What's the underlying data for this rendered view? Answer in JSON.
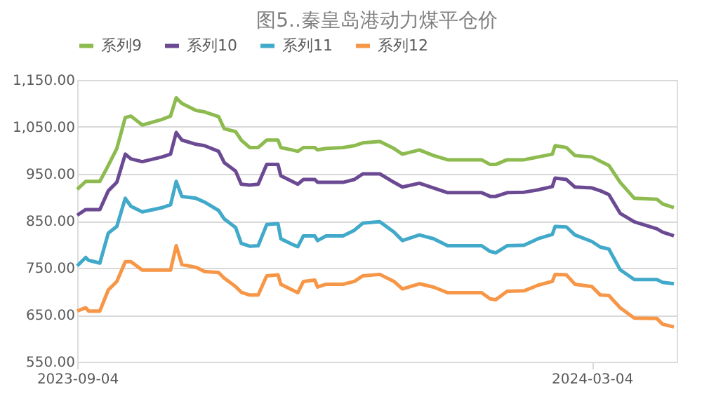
{
  "chart_data": {
    "type": "line",
    "title": "图5..秦皇岛港动力煤平仓价",
    "x": [
      "2023-09-04",
      "2023-09-07",
      "2023-09-08",
      "2023-09-12",
      "2023-09-15",
      "2023-09-18",
      "2023-09-21",
      "2023-09-23",
      "2023-09-27",
      "2023-10-04",
      "2023-10-07",
      "2023-10-09",
      "2023-10-11",
      "2023-10-16",
      "2023-10-19",
      "2023-10-24",
      "2023-10-26",
      "2023-10-30",
      "2023-11-01",
      "2023-11-04",
      "2023-11-07",
      "2023-11-10",
      "2023-11-14",
      "2023-11-15",
      "2023-11-19",
      "2023-11-21",
      "2023-11-23",
      "2023-11-27",
      "2023-11-28",
      "2023-12-01",
      "2023-12-07",
      "2023-12-11",
      "2023-12-14",
      "2023-12-20",
      "2023-12-25",
      "2023-12-28",
      "2024-01-03",
      "2024-01-08",
      "2024-01-13",
      "2024-01-25",
      "2024-01-28",
      "2024-01-30",
      "2024-02-03",
      "2024-02-09",
      "2024-02-14",
      "2024-02-19",
      "2024-02-20",
      "2024-02-24",
      "2024-02-27",
      "2024-03-04",
      "2024-03-07",
      "2024-03-10",
      "2024-03-14",
      "2024-03-19",
      "2024-03-27",
      "2024-03-29",
      "2024-04-02"
    ],
    "series": [
      {
        "name": "系列9",
        "color": "#8dbb4f",
        "values": [
          917,
          934,
          934,
          934,
          968,
          1004,
          1070,
          1073,
          1054,
          1066,
          1073,
          1112,
          1100,
          1085,
          1082,
          1072,
          1046,
          1040,
          1022,
          1006,
          1006,
          1022,
          1022,
          1006,
          1001,
          998,
          1006,
          1006,
          1001,
          1004,
          1006,
          1010,
          1016,
          1019,
          1004,
          992,
          1001,
          989,
          980,
          980,
          970,
          970,
          980,
          980,
          986,
          992,
          1010,
          1006,
          989,
          986,
          977,
          968,
          932,
          898,
          896,
          886,
          878
        ]
      },
      {
        "name": "系列10",
        "color": "#6b4a93",
        "values": [
          862,
          874,
          874,
          874,
          914,
          932,
          992,
          982,
          976,
          986,
          992,
          1038,
          1022,
          1013,
          1010,
          998,
          974,
          956,
          928,
          926,
          928,
          970,
          970,
          946,
          934,
          928,
          938,
          938,
          932,
          932,
          932,
          938,
          950,
          950,
          932,
          922,
          930,
          920,
          910,
          910,
          902,
          902,
          910,
          911,
          916,
          923,
          941,
          938,
          922,
          920,
          914,
          906,
          866,
          848,
          833,
          826,
          818
        ]
      },
      {
        "name": "系列11",
        "color": "#41a9c9",
        "values": [
          754,
          772,
          766,
          760,
          824,
          838,
          898,
          881,
          869,
          878,
          884,
          934,
          902,
          898,
          890,
          872,
          854,
          836,
          802,
          796,
          797,
          842,
          844,
          812,
          800,
          795,
          818,
          818,
          808,
          818,
          818,
          830,
          845,
          848,
          826,
          808,
          820,
          812,
          797,
          797,
          785,
          782,
          797,
          798,
          812,
          821,
          838,
          837,
          820,
          806,
          794,
          790,
          746,
          725,
          725,
          719,
          716
        ]
      },
      {
        "name": "系列12",
        "color": "#f79646",
        "values": [
          658,
          665,
          658,
          658,
          703,
          721,
          763,
          763,
          745,
          745,
          745,
          797,
          757,
          751,
          742,
          740,
          728,
          710,
          698,
          692,
          692,
          733,
          735,
          715,
          703,
          697,
          721,
          724,
          709,
          715,
          715,
          721,
          733,
          736,
          721,
          705,
          716,
          709,
          697,
          697,
          684,
          682,
          700,
          701,
          713,
          721,
          736,
          735,
          715,
          710,
          692,
          691,
          665,
          643,
          642,
          630,
          624
        ]
      }
    ],
    "xlim": [
      "2023-09-04",
      "2024-04-03"
    ],
    "xticks": [
      "2023-09-04",
      "2024-03-04"
    ],
    "ylim": [
      550,
      1150
    ],
    "yticks": [
      {
        "value": 550,
        "label": "550.00"
      },
      {
        "value": 650,
        "label": "650.00"
      },
      {
        "value": 750,
        "label": "750.00"
      },
      {
        "value": 850,
        "label": "850.00"
      },
      {
        "value": 950,
        "label": "950.00"
      },
      {
        "value": 1050,
        "label": "1,050.00"
      },
      {
        "value": 1150,
        "label": "1,150.00"
      }
    ],
    "grid": "y",
    "legend": "top",
    "marker": "none",
    "line_style": "solid"
  }
}
